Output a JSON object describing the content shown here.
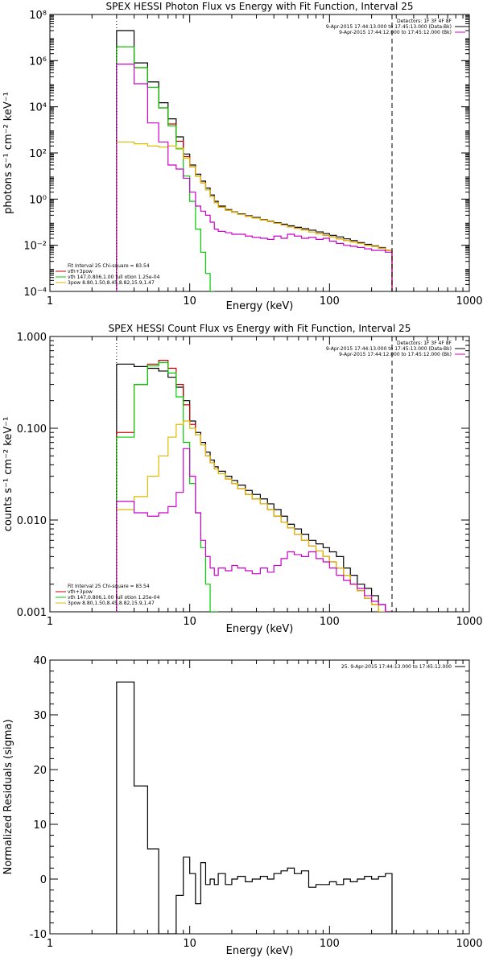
{
  "chart_data": [
    {
      "type": "line",
      "title": "SPEX HESSI Photon Flux vs Energy with Fit Function, Interval 25",
      "xlabel": "Energy (keV)",
      "ylabel": "photons s⁻¹ cm⁻² keV⁻¹",
      "xscale": "log",
      "yscale": "log",
      "xlim": [
        1,
        1000
      ],
      "ylim": [
        0.0001,
        100000000
      ],
      "xticks": [
        {
          "v": 1,
          "label": "1"
        },
        {
          "v": 10,
          "label": "10"
        },
        {
          "v": 100,
          "label": "100"
        },
        {
          "v": 1000,
          "label": "1000"
        }
      ],
      "yticks": [
        {
          "v": 0.0001,
          "label": "10⁻⁴"
        },
        {
          "v": 0.01,
          "label": "10⁻²"
        },
        {
          "v": 1,
          "label": "10⁰"
        },
        {
          "v": 100,
          "label": "10²"
        },
        {
          "v": 10000,
          "label": "10⁴"
        },
        {
          "v": 1000000,
          "label": "10⁶"
        },
        {
          "v": 100000000,
          "label": "10⁸"
        }
      ],
      "vlines": [
        {
          "x": 3,
          "style": "dotted"
        },
        {
          "x": 280,
          "style": "dashed"
        }
      ],
      "legend_top": [
        "Detectors: 1F 3F 4F 8F",
        "9-Apr-2015 17:44:13.000 to 17:45:13.000 (Data-Bk)",
        "9-Apr-2015 17:44:12.000 to 17:45:12.000 (Bk)"
      ],
      "legend_top_colors": [
        "#000000",
        "#000000",
        "#cc00cc"
      ],
      "legend_bottom": [
        "Fit Interval 25   Chi-square = 83.54",
        "vth+3pow",
        "vth 147,0.806,1.00  full otion 1.25e-04",
        "3pow 8.80,1.50,8.45,8.82,15.9,1.47"
      ],
      "legend_bottom_colors": [
        "#000000",
        "#cc0000",
        "#00cc00",
        "#ddbb00"
      ],
      "series": [
        {
          "name": "Data-Bk",
          "color": "#000000",
          "step": true,
          "x": [
            3,
            4,
            5,
            6,
            7,
            8,
            9,
            10,
            11,
            12,
            13,
            14,
            15,
            16,
            18,
            20,
            22,
            25,
            28,
            32,
            36,
            40,
            45,
            50,
            56,
            63,
            71,
            80,
            90,
            100,
            112,
            126,
            141,
            158,
            178,
            200,
            224,
            251,
            280
          ],
          "y": [
            20000000,
            800000,
            120000,
            15000,
            3000,
            500,
            90,
            30,
            12,
            6,
            3,
            1.5,
            0.8,
            0.5,
            0.35,
            0.28,
            0.23,
            0.19,
            0.16,
            0.13,
            0.11,
            0.095,
            0.082,
            0.07,
            0.06,
            0.052,
            0.045,
            0.038,
            0.032,
            0.027,
            0.023,
            0.019,
            0.016,
            0.013,
            0.011,
            0.0095,
            0.008,
            0.006,
            0.0001
          ]
        },
        {
          "name": "vth+3pow",
          "color": "#cc0000",
          "step": true,
          "x": [
            3,
            4,
            5,
            6,
            7,
            8,
            9,
            10,
            11,
            12,
            13,
            14,
            15,
            16,
            18,
            20,
            22,
            25,
            28,
            32,
            36,
            40,
            45,
            50,
            56,
            63,
            71,
            80,
            90,
            100,
            112,
            126,
            141,
            158,
            178,
            200,
            224,
            251,
            280
          ],
          "y": [
            4000000,
            500000,
            70000,
            9000,
            1800,
            320,
            70,
            25,
            10,
            5,
            2.5,
            1.3,
            0.7,
            0.45,
            0.33,
            0.27,
            0.22,
            0.18,
            0.15,
            0.125,
            0.105,
            0.09,
            0.075,
            0.063,
            0.053,
            0.045,
            0.038,
            0.032,
            0.027,
            0.023,
            0.019,
            0.016,
            0.014,
            0.012,
            0.01,
            0.009,
            0.0075,
            0.006,
            0.0001
          ]
        },
        {
          "name": "vth",
          "color": "#00cc00",
          "step": true,
          "x": [
            3,
            4,
            5,
            6,
            7,
            8,
            9,
            10,
            11,
            12,
            13,
            14,
            15
          ],
          "y": [
            4000000,
            500000,
            70000,
            9000,
            1500,
            150,
            10,
            0.8,
            0.05,
            0.005,
            0.0006,
            0.0001,
            0.0001
          ]
        },
        {
          "name": "3pow",
          "color": "#ddbb00",
          "step": true,
          "x": [
            3,
            4,
            5,
            6,
            7,
            8,
            9,
            10,
            11,
            12,
            13,
            14,
            15,
            16,
            18,
            20,
            22,
            25,
            28,
            32,
            36,
            40,
            45,
            50,
            56,
            63,
            71,
            80,
            90,
            100,
            112,
            126,
            141,
            158,
            178,
            200,
            224,
            251,
            280
          ],
          "y": [
            300,
            250,
            200,
            180,
            200,
            160,
            60,
            25,
            10,
            5,
            2.5,
            1.3,
            0.7,
            0.45,
            0.33,
            0.27,
            0.22,
            0.18,
            0.15,
            0.125,
            0.105,
            0.09,
            0.075,
            0.063,
            0.053,
            0.045,
            0.038,
            0.032,
            0.027,
            0.023,
            0.019,
            0.016,
            0.014,
            0.012,
            0.01,
            0.009,
            0.0075,
            0.006,
            0.0001
          ]
        },
        {
          "name": "Bk",
          "color": "#cc00cc",
          "step": true,
          "x": [
            3,
            4,
            5,
            6,
            7,
            8,
            9,
            10,
            11,
            12,
            13,
            14,
            15,
            16,
            18,
            20,
            22,
            25,
            28,
            32,
            36,
            40,
            45,
            50,
            56,
            63,
            71,
            80,
            90,
            100,
            112,
            126,
            141,
            158,
            178,
            200,
            224,
            251,
            280
          ],
          "y": [
            700000,
            100000,
            2000,
            300,
            30,
            20,
            8,
            2,
            0.5,
            0.3,
            0.2,
            0.1,
            0.05,
            0.04,
            0.035,
            0.03,
            0.03,
            0.025,
            0.022,
            0.02,
            0.018,
            0.025,
            0.02,
            0.03,
            0.025,
            0.02,
            0.022,
            0.018,
            0.02,
            0.015,
            0.012,
            0.01,
            0.009,
            0.008,
            0.007,
            0.006,
            0.006,
            0.005,
            0.0001
          ]
        }
      ]
    },
    {
      "type": "line",
      "title": "SPEX HESSI Count Flux vs Energy with Fit Function, Interval 25",
      "xlabel": "Energy (keV)",
      "ylabel": "counts s⁻¹ cm⁻² keV⁻¹",
      "xscale": "log",
      "yscale": "log",
      "xlim": [
        1,
        1000
      ],
      "ylim": [
        0.001,
        1
      ],
      "xticks": [
        {
          "v": 1,
          "label": "1"
        },
        {
          "v": 10,
          "label": "10"
        },
        {
          "v": 100,
          "label": "100"
        },
        {
          "v": 1000,
          "label": "1000"
        }
      ],
      "yticks": [
        {
          "v": 0.001,
          "label": "0.001"
        },
        {
          "v": 0.01,
          "label": "0.010"
        },
        {
          "v": 0.1,
          "label": "0.100"
        },
        {
          "v": 1,
          "label": "1.000"
        }
      ],
      "vlines": [
        {
          "x": 3,
          "style": "dotted"
        },
        {
          "x": 280,
          "style": "dashed"
        }
      ],
      "legend_top": [
        "Detectors: 1F 3F 4F 8F",
        "9-Apr-2015 17:44:13.000 to 17:45:13.000 (Data-Bk)",
        "9-Apr-2015 17:44:12.000 to 17:45:12.000 (Bk)"
      ],
      "legend_top_colors": [
        "#000000",
        "#000000",
        "#cc00cc"
      ],
      "legend_bottom": [
        "Fit Interval 25   Chi-square = 83.54",
        "vth+3pow",
        "vth 147,0.806,1.00  full otion 1.25e-04",
        "3pow 8.80,1.50,8.45,8.82,15.9,1.47"
      ],
      "legend_bottom_colors": [
        "#000000",
        "#cc0000",
        "#00cc00",
        "#ddbb00"
      ],
      "series": [
        {
          "name": "Data-Bk",
          "color": "#000000",
          "step": true,
          "x": [
            3,
            4,
            5,
            6,
            7,
            8,
            9,
            10,
            11,
            12,
            13,
            14,
            15,
            16,
            18,
            20,
            22,
            25,
            28,
            32,
            36,
            40,
            45,
            50,
            56,
            63,
            71,
            80,
            90,
            100,
            112,
            126,
            141,
            158,
            178,
            200,
            224,
            251,
            280
          ],
          "y": [
            0.5,
            0.47,
            0.45,
            0.42,
            0.36,
            0.28,
            0.2,
            0.12,
            0.09,
            0.07,
            0.055,
            0.045,
            0.038,
            0.034,
            0.03,
            0.027,
            0.024,
            0.021,
            0.019,
            0.017,
            0.015,
            0.013,
            0.011,
            0.009,
            0.008,
            0.007,
            0.006,
            0.0055,
            0.005,
            0.0045,
            0.004,
            0.003,
            0.0025,
            0.002,
            0.0018,
            0.0015,
            0.0012,
            0.001,
            0.001
          ]
        },
        {
          "name": "vth+3pow",
          "color": "#cc0000",
          "step": true,
          "x": [
            3,
            4,
            5,
            6,
            7,
            8,
            9,
            10,
            11,
            12,
            13,
            14,
            15,
            16,
            18,
            20,
            22,
            25,
            28,
            32,
            36,
            40,
            45,
            50,
            56,
            63,
            71,
            80,
            90,
            100,
            112,
            126,
            141,
            158,
            178,
            200,
            224,
            251,
            280
          ],
          "y": [
            0.09,
            0.3,
            0.5,
            0.55,
            0.45,
            0.3,
            0.18,
            0.11,
            0.085,
            0.066,
            0.05,
            0.042,
            0.036,
            0.032,
            0.028,
            0.025,
            0.022,
            0.019,
            0.017,
            0.015,
            0.013,
            0.011,
            0.0095,
            0.0082,
            0.007,
            0.006,
            0.0052,
            0.0046,
            0.004,
            0.0035,
            0.003,
            0.0025,
            0.002,
            0.0017,
            0.0014,
            0.0012,
            0.001,
            0.001,
            0.001
          ]
        },
        {
          "name": "vth",
          "color": "#00cc00",
          "step": true,
          "x": [
            3,
            4,
            5,
            6,
            7,
            8,
            9,
            10,
            11,
            12,
            13,
            14,
            15,
            16
          ],
          "y": [
            0.08,
            0.3,
            0.48,
            0.52,
            0.4,
            0.22,
            0.07,
            0.025,
            0.012,
            0.005,
            0.002,
            0.001,
            0.001,
            0.001
          ]
        },
        {
          "name": "3pow",
          "color": "#ddbb00",
          "step": true,
          "x": [
            3,
            4,
            5,
            6,
            7,
            8,
            9,
            10,
            11,
            12,
            13,
            14,
            15,
            16,
            18,
            20,
            22,
            25,
            28,
            32,
            36,
            40,
            45,
            50,
            56,
            63,
            71,
            80,
            90,
            100,
            112,
            126,
            141,
            158,
            178,
            200,
            224,
            251,
            280
          ],
          "y": [
            0.013,
            0.018,
            0.03,
            0.05,
            0.08,
            0.11,
            0.12,
            0.1,
            0.085,
            0.066,
            0.05,
            0.042,
            0.036,
            0.032,
            0.028,
            0.025,
            0.022,
            0.019,
            0.017,
            0.015,
            0.013,
            0.011,
            0.0095,
            0.0082,
            0.007,
            0.006,
            0.0052,
            0.0046,
            0.004,
            0.0035,
            0.003,
            0.0025,
            0.002,
            0.0017,
            0.0014,
            0.0012,
            0.001,
            0.001,
            0.001
          ]
        },
        {
          "name": "Bk",
          "color": "#cc00cc",
          "step": true,
          "x": [
            3,
            4,
            5,
            6,
            7,
            8,
            9,
            10,
            11,
            12,
            13,
            14,
            15,
            16,
            18,
            20,
            22,
            25,
            28,
            32,
            36,
            40,
            45,
            50,
            56,
            63,
            71,
            80,
            90,
            100,
            112,
            126,
            141,
            158,
            178,
            200,
            224,
            251,
            280
          ],
          "y": [
            0.016,
            0.012,
            0.011,
            0.012,
            0.014,
            0.02,
            0.06,
            0.03,
            0.012,
            0.006,
            0.004,
            0.003,
            0.0025,
            0.003,
            0.0028,
            0.0032,
            0.003,
            0.0028,
            0.0026,
            0.003,
            0.0027,
            0.0032,
            0.0038,
            0.0045,
            0.0042,
            0.004,
            0.0045,
            0.0038,
            0.0035,
            0.003,
            0.0025,
            0.0022,
            0.002,
            0.0018,
            0.0015,
            0.0013,
            0.0012,
            0.001,
            0.001
          ]
        }
      ]
    },
    {
      "type": "line",
      "title": "",
      "xlabel": "Energy (keV)",
      "ylabel": "Normalized Residuals (sigma)",
      "xscale": "log",
      "yscale": "linear",
      "xlim": [
        1,
        1000
      ],
      "ylim": [
        -10,
        40
      ],
      "xticks": [
        {
          "v": 1,
          "label": "1"
        },
        {
          "v": 10,
          "label": "10"
        },
        {
          "v": 100,
          "label": "100"
        },
        {
          "v": 1000,
          "label": "1000"
        }
      ],
      "yticks": [
        {
          "v": -10,
          "label": "-10"
        },
        {
          "v": 0,
          "label": "0"
        },
        {
          "v": 10,
          "label": "10"
        },
        {
          "v": 20,
          "label": "20"
        },
        {
          "v": 30,
          "label": "30"
        },
        {
          "v": 40,
          "label": "40"
        }
      ],
      "legend_top": [
        "25.  9-Apr-2015 17:44:13.000 to 17:45:12.000"
      ],
      "legend_top_colors": [
        "#000000"
      ],
      "series": [
        {
          "name": "25",
          "color": "#000000",
          "step": true,
          "x": [
            3,
            4,
            5,
            6,
            7,
            8,
            9,
            10,
            11,
            12,
            13,
            14,
            15,
            16,
            18,
            20,
            22,
            25,
            28,
            32,
            36,
            40,
            45,
            50,
            56,
            63,
            71,
            80,
            90,
            100,
            112,
            126,
            141,
            158,
            178,
            200,
            224,
            251,
            280
          ],
          "y": [
            36,
            17,
            5.5,
            -12,
            -12,
            -3,
            4,
            1,
            -4.5,
            3,
            -1,
            0,
            -1,
            1,
            -1,
            0,
            0.5,
            -0.5,
            0,
            0.5,
            0,
            1,
            1.5,
            2,
            1,
            1.5,
            -1.5,
            -1,
            -1,
            -0.5,
            -1,
            0,
            -0.5,
            0,
            0.5,
            0,
            0.5,
            1,
            0.5
          ]
        }
      ]
    }
  ]
}
